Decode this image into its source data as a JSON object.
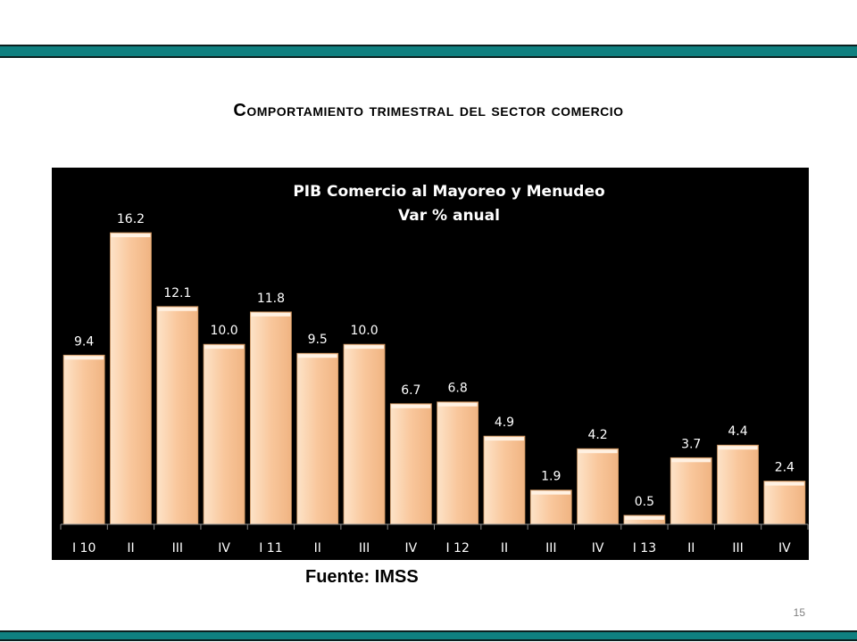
{
  "slide": {
    "title": "Comportamiento trimestral del sector comercio",
    "source": "Fuente: IMSS",
    "page_number": "15"
  },
  "colors": {
    "band": "#0f8080",
    "panel_background": "#000000",
    "bar_fill": "#f9c79c",
    "text_on_panel": "#ffffff"
  },
  "chart_data": {
    "type": "bar",
    "title": "PIB Comercio al Mayoreo y Menudeo",
    "subtitle": "Var % anual",
    "xlabel": "",
    "ylabel": "",
    "categories": [
      "I 10",
      "II",
      "III",
      "IV",
      "I 11",
      "II",
      "III",
      "IV",
      "I 12",
      "II",
      "III",
      "IV",
      "I 13",
      "II",
      "III",
      "IV"
    ],
    "values": [
      9.4,
      16.2,
      12.1,
      10.0,
      11.8,
      9.5,
      10.0,
      6.7,
      6.8,
      4.9,
      1.9,
      4.2,
      0.5,
      3.7,
      4.4,
      2.4
    ],
    "value_labels": [
      "9.4",
      "16.2",
      "12.1",
      "10.0",
      "11.8",
      "9.5",
      "10.0",
      "6.7",
      "6.8",
      "4.9",
      "1.9",
      "4.2",
      "0.5",
      "3.7",
      "4.4",
      "2.4"
    ],
    "ylim": [
      0,
      16.2
    ],
    "grid": false,
    "legend": "none"
  }
}
